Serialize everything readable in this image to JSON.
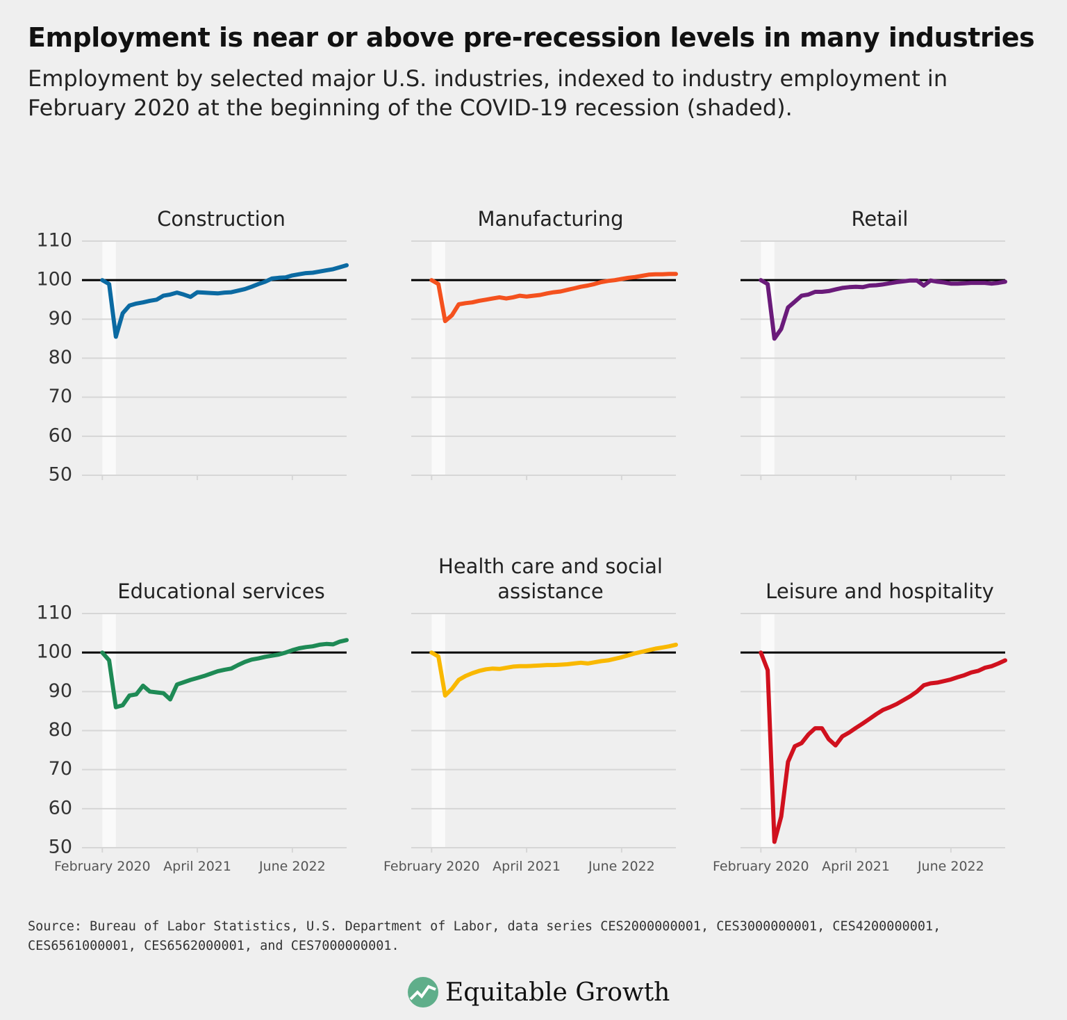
{
  "title": "Employment is near or above pre-recession levels in many industries",
  "subtitle": "Employment by selected major U.S. industries, indexed to industry employment in February 2020 at the beginning of the COVID-19 recession (shaded).",
  "source": "Source: Bureau of Labor Statistics, U.S. Department of Labor, data series CES2000000001, CES3000000001, CES4200000001, CES6561000001, CES6562000001, and CES7000000001.",
  "brand": "Equitable Growth",
  "chart_data": [
    {
      "type": "line",
      "title": "Construction",
      "color": "#0b6aa2",
      "x": [
        "2020-02",
        "2020-03",
        "2020-04",
        "2020-05",
        "2020-06",
        "2020-07",
        "2020-08",
        "2020-09",
        "2020-10",
        "2020-11",
        "2020-12",
        "2021-01",
        "2021-02",
        "2021-03",
        "2021-04",
        "2021-05",
        "2021-06",
        "2021-07",
        "2021-08",
        "2021-09",
        "2021-10",
        "2021-11",
        "2021-12",
        "2022-01",
        "2022-02",
        "2022-03",
        "2022-04",
        "2022-05",
        "2022-06",
        "2022-07",
        "2022-08",
        "2022-09",
        "2022-10",
        "2022-11",
        "2022-12",
        "2023-01",
        "2023-02"
      ],
      "values": [
        100,
        99,
        85.5,
        91.5,
        93.5,
        94,
        94.3,
        94.7,
        95,
        96,
        96.3,
        96.8,
        96.3,
        95.7,
        96.9,
        96.8,
        96.7,
        96.6,
        96.8,
        96.9,
        97.3,
        97.7,
        98.3,
        99,
        99.6,
        100.4,
        100.6,
        100.7,
        101.2,
        101.5,
        101.8,
        101.9,
        102.2,
        102.5,
        102.8,
        103.3,
        103.8
      ],
      "xlim": [
        "2019-11",
        "2023-02"
      ],
      "xticks": [
        "2020-02",
        "2021-04",
        "2022-06"
      ],
      "ylim": [
        50,
        110
      ],
      "yticks": [
        50,
        60,
        70,
        80,
        90,
        100,
        110
      ],
      "ytick_labels": true,
      "reference_line": 100,
      "recession": [
        "2020-02",
        "2020-04"
      ],
      "grid": true
    },
    {
      "type": "line",
      "title": "Manufacturing",
      "color": "#f4511e",
      "x": [
        "2020-02",
        "2020-03",
        "2020-04",
        "2020-05",
        "2020-06",
        "2020-07",
        "2020-08",
        "2020-09",
        "2020-10",
        "2020-11",
        "2020-12",
        "2021-01",
        "2021-02",
        "2021-03",
        "2021-04",
        "2021-05",
        "2021-06",
        "2021-07",
        "2021-08",
        "2021-09",
        "2021-10",
        "2021-11",
        "2021-12",
        "2022-01",
        "2022-02",
        "2022-03",
        "2022-04",
        "2022-05",
        "2022-06",
        "2022-07",
        "2022-08",
        "2022-09",
        "2022-10",
        "2022-11",
        "2022-12",
        "2023-01",
        "2023-02"
      ],
      "values": [
        100,
        99,
        89.5,
        91,
        93.8,
        94.1,
        94.3,
        94.7,
        95,
        95.3,
        95.6,
        95.3,
        95.6,
        96,
        95.8,
        96,
        96.2,
        96.6,
        96.9,
        97.1,
        97.5,
        97.9,
        98.3,
        98.6,
        99,
        99.5,
        99.8,
        100,
        100.3,
        100.6,
        100.8,
        101.1,
        101.4,
        101.5,
        101.5,
        101.6,
        101.6
      ],
      "xlim": [
        "2019-11",
        "2023-02"
      ],
      "xticks": [
        "2020-02",
        "2021-04",
        "2022-06"
      ],
      "ylim": [
        50,
        110
      ],
      "yticks": [
        50,
        60,
        70,
        80,
        90,
        100,
        110
      ],
      "ytick_labels": false,
      "reference_line": 100,
      "recession": [
        "2020-02",
        "2020-04"
      ],
      "grid": true
    },
    {
      "type": "line",
      "title": "Retail",
      "color": "#6a1b7a",
      "x": [
        "2020-02",
        "2020-03",
        "2020-04",
        "2020-05",
        "2020-06",
        "2020-07",
        "2020-08",
        "2020-09",
        "2020-10",
        "2020-11",
        "2020-12",
        "2021-01",
        "2021-02",
        "2021-03",
        "2021-04",
        "2021-05",
        "2021-06",
        "2021-07",
        "2021-08",
        "2021-09",
        "2021-10",
        "2021-11",
        "2021-12",
        "2022-01",
        "2022-02",
        "2022-03",
        "2022-04",
        "2022-05",
        "2022-06",
        "2022-07",
        "2022-08",
        "2022-09",
        "2022-10",
        "2022-11",
        "2022-12",
        "2023-01",
        "2023-02"
      ],
      "values": [
        100,
        99,
        85,
        87.5,
        93,
        94.5,
        96,
        96.3,
        97,
        97,
        97.2,
        97.6,
        98,
        98.2,
        98.3,
        98.2,
        98.6,
        98.7,
        98.9,
        99.2,
        99.5,
        99.7,
        99.9,
        99.9,
        98.6,
        99.9,
        99.6,
        99.4,
        99.1,
        99.1,
        99.2,
        99.3,
        99.3,
        99.3,
        99.1,
        99.3,
        99.6
      ],
      "xlim": [
        "2019-11",
        "2023-02"
      ],
      "xticks": [
        "2020-02",
        "2021-04",
        "2022-06"
      ],
      "ylim": [
        50,
        110
      ],
      "yticks": [
        50,
        60,
        70,
        80,
        90,
        100,
        110
      ],
      "ytick_labels": false,
      "reference_line": 100,
      "recession": [
        "2020-02",
        "2020-04"
      ],
      "grid": true
    },
    {
      "type": "line",
      "title": "Educational services",
      "color": "#1e8a55",
      "x": [
        "2020-02",
        "2020-03",
        "2020-04",
        "2020-05",
        "2020-06",
        "2020-07",
        "2020-08",
        "2020-09",
        "2020-10",
        "2020-11",
        "2020-12",
        "2021-01",
        "2021-02",
        "2021-03",
        "2021-04",
        "2021-05",
        "2021-06",
        "2021-07",
        "2021-08",
        "2021-09",
        "2021-10",
        "2021-11",
        "2021-12",
        "2022-01",
        "2022-02",
        "2022-03",
        "2022-04",
        "2022-05",
        "2022-06",
        "2022-07",
        "2022-08",
        "2022-09",
        "2022-10",
        "2022-11",
        "2022-12",
        "2023-01",
        "2023-02"
      ],
      "values": [
        100,
        98,
        86,
        86.5,
        89,
        89.3,
        91.5,
        90,
        89.8,
        89.6,
        88,
        91.8,
        92.4,
        93,
        93.5,
        94,
        94.6,
        95.2,
        95.6,
        95.9,
        96.8,
        97.6,
        98.2,
        98.5,
        98.9,
        99.2,
        99.5,
        100,
        100.6,
        101.1,
        101.4,
        101.6,
        102,
        102.2,
        102.1,
        102.8,
        103.2
      ],
      "xlim": [
        "2019-11",
        "2023-02"
      ],
      "xticks": [
        {
          "value": "2020-02",
          "label": "February 2020"
        },
        {
          "value": "2021-04",
          "label": "April 2021"
        },
        {
          "value": "2022-06",
          "label": "June 2022"
        }
      ],
      "ylim": [
        50,
        110
      ],
      "yticks": [
        50,
        60,
        70,
        80,
        90,
        100,
        110
      ],
      "ytick_labels": true,
      "reference_line": 100,
      "recession": [
        "2020-02",
        "2020-04"
      ],
      "grid": true
    },
    {
      "type": "line",
      "title": "Health care and social assistance",
      "color": "#f9b800",
      "x": [
        "2020-02",
        "2020-03",
        "2020-04",
        "2020-05",
        "2020-06",
        "2020-07",
        "2020-08",
        "2020-09",
        "2020-10",
        "2020-11",
        "2020-12",
        "2021-01",
        "2021-02",
        "2021-03",
        "2021-04",
        "2021-05",
        "2021-06",
        "2021-07",
        "2021-08",
        "2021-09",
        "2021-10",
        "2021-11",
        "2021-12",
        "2022-01",
        "2022-02",
        "2022-03",
        "2022-04",
        "2022-05",
        "2022-06",
        "2022-07",
        "2022-08",
        "2022-09",
        "2022-10",
        "2022-11",
        "2022-12",
        "2023-01",
        "2023-02"
      ],
      "values": [
        100,
        99,
        89,
        90.7,
        93,
        94,
        94.7,
        95.3,
        95.7,
        95.9,
        95.8,
        96.1,
        96.4,
        96.5,
        96.5,
        96.6,
        96.7,
        96.8,
        96.8,
        96.9,
        97,
        97.2,
        97.4,
        97.2,
        97.5,
        97.8,
        98,
        98.4,
        98.8,
        99.3,
        99.8,
        100.2,
        100.6,
        101,
        101.3,
        101.6,
        102
      ],
      "xlim": [
        "2019-11",
        "2023-02"
      ],
      "xticks": [
        {
          "value": "2020-02",
          "label": "February 2020"
        },
        {
          "value": "2021-04",
          "label": "April 2021"
        },
        {
          "value": "2022-06",
          "label": "June 2022"
        }
      ],
      "ylim": [
        50,
        110
      ],
      "yticks": [
        50,
        60,
        70,
        80,
        90,
        100,
        110
      ],
      "ytick_labels": false,
      "reference_line": 100,
      "recession": [
        "2020-02",
        "2020-04"
      ],
      "grid": true
    },
    {
      "type": "line",
      "title": "Leisure and hospitality",
      "color": "#d0111e",
      "x": [
        "2020-02",
        "2020-03",
        "2020-04",
        "2020-05",
        "2020-06",
        "2020-07",
        "2020-08",
        "2020-09",
        "2020-10",
        "2020-11",
        "2020-12",
        "2021-01",
        "2021-02",
        "2021-03",
        "2021-04",
        "2021-05",
        "2021-06",
        "2021-07",
        "2021-08",
        "2021-09",
        "2021-10",
        "2021-11",
        "2021-12",
        "2022-01",
        "2022-02",
        "2022-03",
        "2022-04",
        "2022-05",
        "2022-06",
        "2022-07",
        "2022-08",
        "2022-09",
        "2022-10",
        "2022-11",
        "2022-12",
        "2023-01",
        "2023-02"
      ],
      "values": [
        100,
        95.5,
        51.5,
        58,
        72,
        76,
        76.8,
        79,
        80.6,
        80.6,
        77.8,
        76.2,
        78.5,
        79.5,
        80.7,
        81.8,
        83,
        84.2,
        85.3,
        86,
        86.8,
        87.8,
        88.8,
        90,
        91.6,
        92.1,
        92.3,
        92.7,
        93.1,
        93.7,
        94.2,
        94.9,
        95.3,
        96.1,
        96.5,
        97.2,
        98
      ],
      "xlim": [
        "2019-11",
        "2023-02"
      ],
      "xticks": [
        {
          "value": "2020-02",
          "label": "February 2020"
        },
        {
          "value": "2021-04",
          "label": "April 2021"
        },
        {
          "value": "2022-06",
          "label": "June 2022"
        }
      ],
      "ylim": [
        50,
        110
      ],
      "yticks": [
        50,
        60,
        70,
        80,
        90,
        100,
        110
      ],
      "ytick_labels": false,
      "reference_line": 100,
      "recession": [
        "2020-02",
        "2020-04"
      ],
      "grid": true
    }
  ]
}
